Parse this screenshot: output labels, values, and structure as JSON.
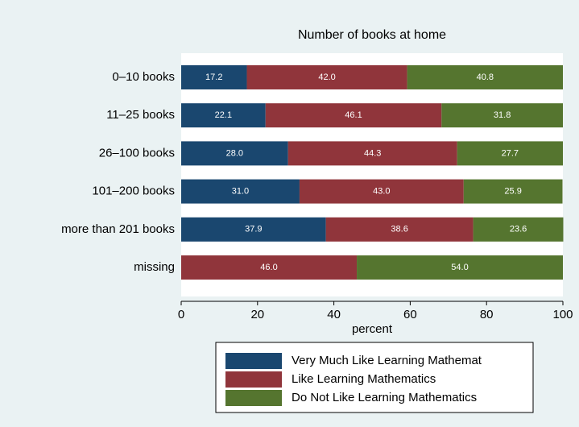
{
  "chart_data": {
    "type": "stacked_barh",
    "title": "Number of books at home",
    "xlabel": "percent",
    "categories": [
      "0–10 books",
      "11–25 books",
      "26–100 books",
      "101–200 books",
      "more than 201 books",
      "missing"
    ],
    "series": [
      {
        "name": "Very Much Like Learning Mathemat",
        "color": "#1a476f",
        "values": [
          17.2,
          22.1,
          28.0,
          31.0,
          37.9,
          null
        ],
        "value_labels": [
          "17.2",
          "22.1",
          "28.0",
          "31.0",
          "37.9",
          null
        ]
      },
      {
        "name": "Like Learning Mathematics",
        "color": "#90353b",
        "values": [
          42.0,
          46.1,
          44.3,
          43.0,
          38.6,
          46.0
        ],
        "value_labels": [
          "42.0",
          "46.1",
          "44.3",
          "43.0",
          "38.6",
          "46.0"
        ]
      },
      {
        "name": "Do Not Like Learning Mathematics",
        "color": "#55752f",
        "values": [
          40.8,
          31.8,
          27.7,
          25.9,
          23.6,
          54.0
        ],
        "value_labels": [
          "40.8",
          "31.8",
          "27.7",
          "25.9",
          "23.6",
          "54.0"
        ]
      }
    ],
    "xlim": [
      0,
      100
    ],
    "xticks": [
      0,
      20,
      40,
      60,
      80,
      100
    ]
  }
}
